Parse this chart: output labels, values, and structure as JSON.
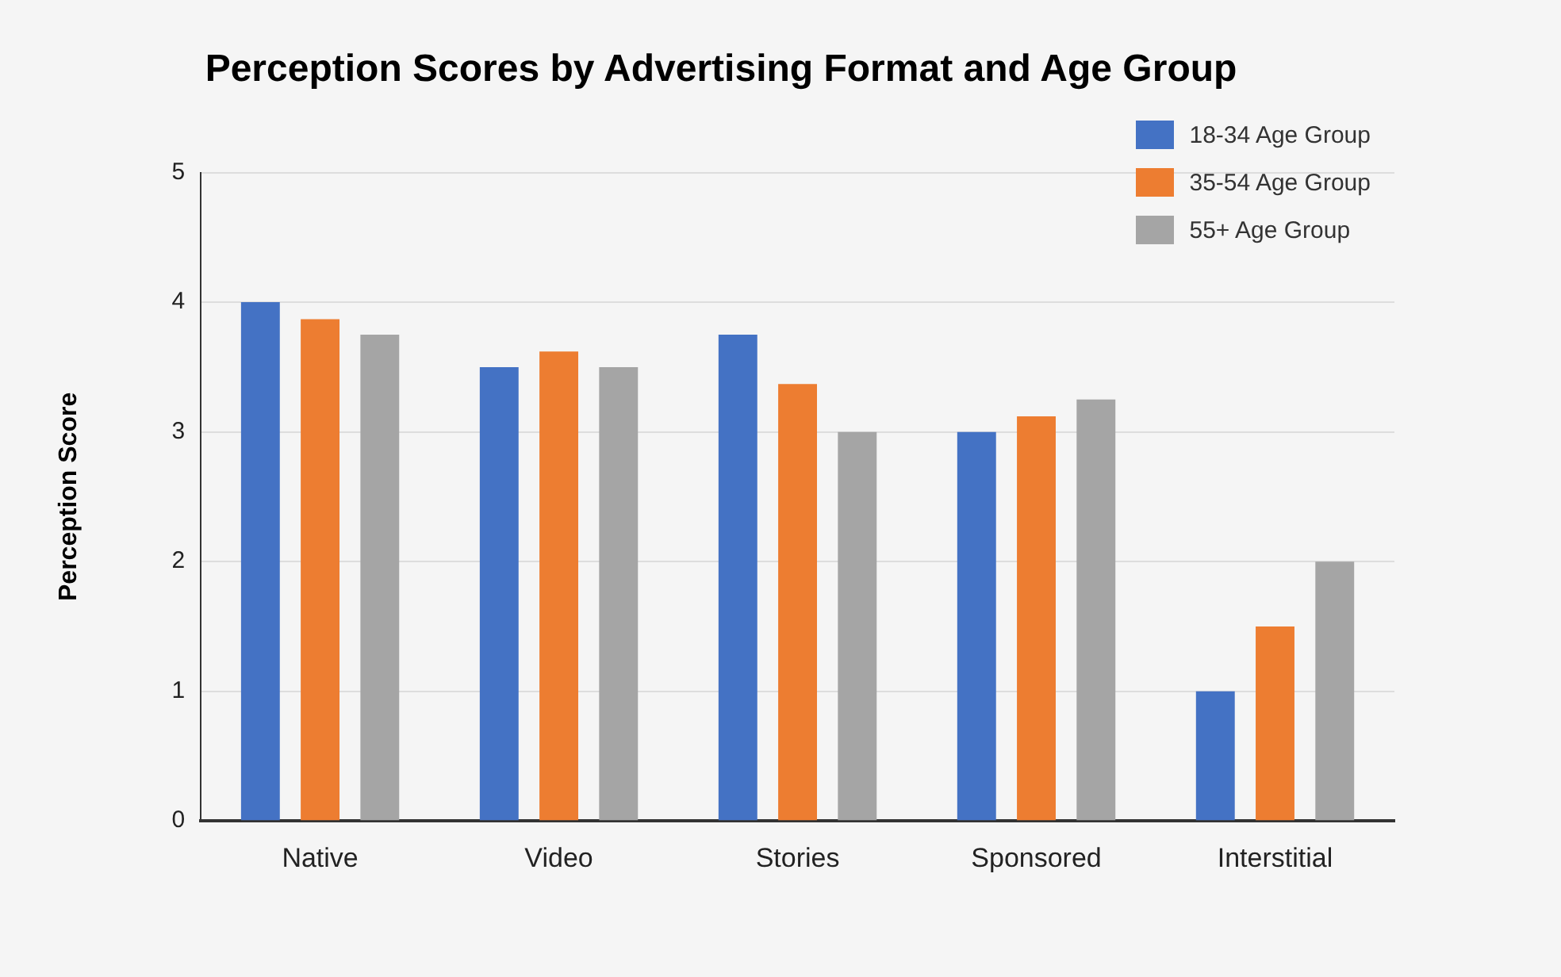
{
  "chart_data": {
    "type": "bar",
    "title": "Perception Scores by Advertising Format and Age Group",
    "ylabel": "Perception Score",
    "categories": [
      "Native",
      "Video",
      "Stories",
      "Sponsored",
      "Interstitial"
    ],
    "series": [
      {
        "name": "18-34 Age Group",
        "color": "#4472c4",
        "values": [
          4.0,
          3.5,
          3.75,
          3.0,
          1.0
        ]
      },
      {
        "name": "35-54 Age Group",
        "color": "#ed7d31",
        "values": [
          3.87,
          3.62,
          3.37,
          3.12,
          1.5
        ]
      },
      {
        "name": "55+ Age Group",
        "color": "#a5a5a5",
        "values": [
          3.75,
          3.5,
          3.0,
          3.25,
          2.0
        ]
      }
    ],
    "ylim": [
      0,
      5
    ],
    "yticks": [
      0,
      1,
      2,
      3,
      4,
      5
    ],
    "grid": "y",
    "legend": "top right"
  }
}
